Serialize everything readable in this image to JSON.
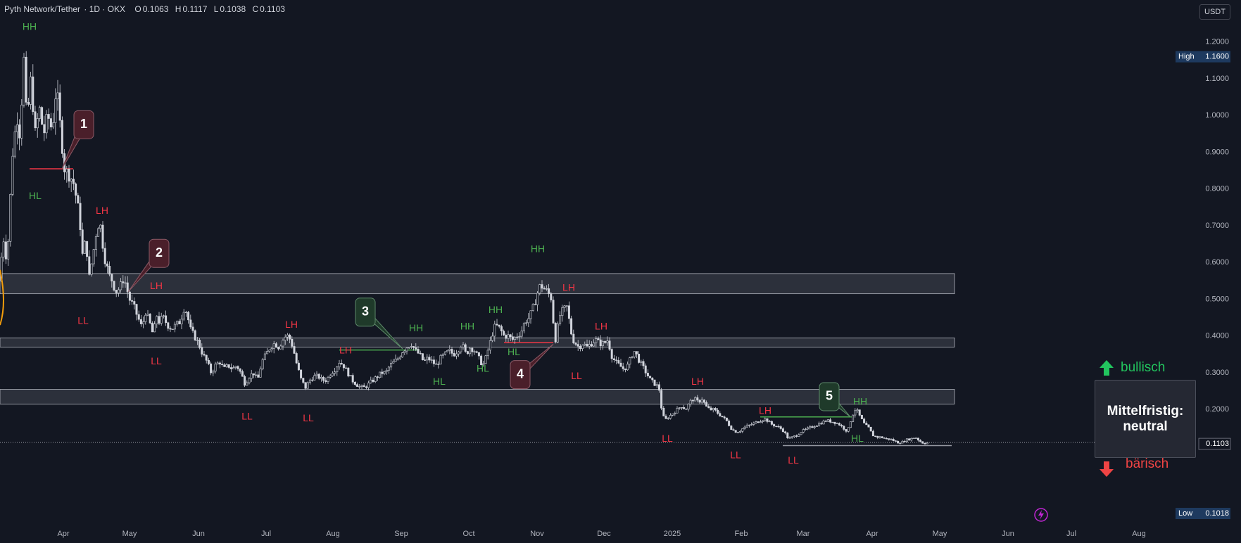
{
  "header": {
    "symbol": "Pyth Network/Tether",
    "interval_exchange": " · 1D · OKX",
    "ohlc": [
      {
        "key": "O",
        "value": "0.1063"
      },
      {
        "key": "H",
        "value": "0.1117"
      },
      {
        "key": "L",
        "value": "0.1038"
      },
      {
        "key": "C",
        "value": "0.1103"
      }
    ]
  },
  "currency_button": "USDT",
  "outlook": {
    "line1": "Mittelfristig:",
    "line2": "neutral",
    "bull": "bullisch",
    "bear": "bärisch"
  },
  "colors": {
    "background": "#131722",
    "candle": "#d1d4dc",
    "green": "#4caf50",
    "red": "#f23645",
    "zone": "rgba(120,123,134,0.25)"
  },
  "chart_data": {
    "type": "candlestick",
    "instrument": "Pyth Network/Tether",
    "price_axis": {
      "ticks": [
        "1.2000",
        "1.1000",
        "1.0000",
        "0.9000",
        "0.8000",
        "0.7000",
        "0.6000",
        "0.5000",
        "0.4000",
        "0.3000",
        "0.2000"
      ],
      "ylim": [
        0.08,
        1.25
      ],
      "high_label": "High",
      "high_value": "1.1600",
      "low_label": "Low",
      "low_value": "0.1018",
      "last_value": "0.1103"
    },
    "time_axis": {
      "ticks": [
        "Apr",
        "May",
        "Jun",
        "Jul",
        "Aug",
        "Sep",
        "Oct",
        "Nov",
        "Dec",
        "2025",
        "Feb",
        "Mar",
        "Apr",
        "May",
        "Jun",
        "Jul",
        "Aug"
      ]
    },
    "price_path": [
      [
        0,
        0.55
      ],
      [
        4,
        0.68
      ],
      [
        10,
        0.6
      ],
      [
        18,
        0.9
      ],
      [
        24,
        1.0
      ],
      [
        28,
        0.95
      ],
      [
        34,
        1.15
      ],
      [
        38,
        0.98
      ],
      [
        44,
        1.1
      ],
      [
        50,
        0.95
      ],
      [
        56,
        1.02
      ],
      [
        62,
        0.95
      ],
      [
        68,
        1.0
      ],
      [
        74,
        0.96
      ],
      [
        80,
        1.08
      ],
      [
        86,
        0.96
      ],
      [
        92,
        0.85
      ],
      [
        98,
        0.84
      ],
      [
        104,
        0.82
      ],
      [
        110,
        0.76
      ],
      [
        114,
        0.7
      ],
      [
        118,
        0.6
      ],
      [
        122,
        0.68
      ],
      [
        126,
        0.55
      ],
      [
        132,
        0.62
      ],
      [
        138,
        0.7
      ],
      [
        142,
        0.71
      ],
      [
        146,
        0.65
      ],
      [
        150,
        0.6
      ],
      [
        156,
        0.56
      ],
      [
        160,
        0.55
      ],
      [
        164,
        0.52
      ],
      [
        170,
        0.53
      ],
      [
        176,
        0.56
      ],
      [
        180,
        0.53
      ],
      [
        184,
        0.5
      ],
      [
        190,
        0.48
      ],
      [
        196,
        0.45
      ],
      [
        202,
        0.42
      ],
      [
        206,
        0.47
      ],
      [
        212,
        0.44
      ],
      [
        218,
        0.4
      ],
      [
        222,
        0.46
      ],
      [
        226,
        0.44
      ],
      [
        232,
        0.45
      ],
      [
        238,
        0.43
      ],
      [
        244,
        0.42
      ],
      [
        250,
        0.43
      ],
      [
        256,
        0.44
      ],
      [
        262,
        0.48
      ],
      [
        266,
        0.46
      ],
      [
        270,
        0.42
      ],
      [
        276,
        0.4
      ],
      [
        282,
        0.38
      ],
      [
        288,
        0.35
      ],
      [
        294,
        0.33
      ],
      [
        300,
        0.3
      ],
      [
        306,
        0.32
      ],
      [
        312,
        0.33
      ],
      [
        318,
        0.31
      ],
      [
        324,
        0.32
      ],
      [
        330,
        0.31
      ],
      [
        336,
        0.32
      ],
      [
        342,
        0.3
      ],
      [
        348,
        0.27
      ],
      [
        354,
        0.29
      ],
      [
        360,
        0.3
      ],
      [
        366,
        0.28
      ],
      [
        372,
        0.33
      ],
      [
        378,
        0.35
      ],
      [
        384,
        0.37
      ],
      [
        390,
        0.38
      ],
      [
        396,
        0.37
      ],
      [
        402,
        0.39
      ],
      [
        406,
        0.4
      ],
      [
        410,
        0.4
      ],
      [
        416,
        0.37
      ],
      [
        422,
        0.32
      ],
      [
        428,
        0.28
      ],
      [
        434,
        0.26
      ],
      [
        440,
        0.28
      ],
      [
        446,
        0.29
      ],
      [
        452,
        0.29
      ],
      [
        458,
        0.28
      ],
      [
        464,
        0.28
      ],
      [
        470,
        0.3
      ],
      [
        476,
        0.31
      ],
      [
        482,
        0.33
      ],
      [
        488,
        0.32
      ],
      [
        494,
        0.3
      ],
      [
        500,
        0.28
      ],
      [
        506,
        0.27
      ],
      [
        512,
        0.26
      ],
      [
        518,
        0.26
      ],
      [
        524,
        0.27
      ],
      [
        530,
        0.28
      ],
      [
        536,
        0.29
      ],
      [
        542,
        0.3
      ],
      [
        548,
        0.3
      ],
      [
        554,
        0.32
      ],
      [
        560,
        0.33
      ],
      [
        566,
        0.34
      ],
      [
        572,
        0.36
      ],
      [
        578,
        0.37
      ],
      [
        584,
        0.38
      ],
      [
        590,
        0.36
      ],
      [
        596,
        0.35
      ],
      [
        602,
        0.33
      ],
      [
        608,
        0.34
      ],
      [
        614,
        0.33
      ],
      [
        620,
        0.32
      ],
      [
        626,
        0.34
      ],
      [
        632,
        0.35
      ],
      [
        638,
        0.36
      ],
      [
        644,
        0.35
      ],
      [
        650,
        0.36
      ],
      [
        656,
        0.38
      ],
      [
        662,
        0.35
      ],
      [
        668,
        0.37
      ],
      [
        674,
        0.36
      ],
      [
        680,
        0.34
      ],
      [
        686,
        0.32
      ],
      [
        690,
        0.34
      ],
      [
        696,
        0.38
      ],
      [
        700,
        0.41
      ],
      [
        704,
        0.43
      ],
      [
        710,
        0.42
      ],
      [
        716,
        0.4
      ],
      [
        722,
        0.4
      ],
      [
        728,
        0.39
      ],
      [
        734,
        0.4
      ],
      [
        740,
        0.41
      ],
      [
        746,
        0.44
      ],
      [
        752,
        0.45
      ],
      [
        758,
        0.48
      ],
      [
        764,
        0.52
      ],
      [
        768,
        0.54
      ],
      [
        772,
        0.53
      ],
      [
        778,
        0.52
      ],
      [
        784,
        0.5
      ],
      [
        788,
        0.38
      ],
      [
        792,
        0.42
      ],
      [
        796,
        0.46
      ],
      [
        800,
        0.47
      ],
      [
        806,
        0.48
      ],
      [
        810,
        0.42
      ],
      [
        814,
        0.39
      ],
      [
        818,
        0.38
      ],
      [
        822,
        0.37
      ],
      [
        828,
        0.38
      ],
      [
        834,
        0.37
      ],
      [
        840,
        0.38
      ],
      [
        846,
        0.39
      ],
      [
        852,
        0.38
      ],
      [
        858,
        0.38
      ],
      [
        864,
        0.39
      ],
      [
        868,
        0.35
      ],
      [
        874,
        0.33
      ],
      [
        880,
        0.32
      ],
      [
        886,
        0.31
      ],
      [
        892,
        0.32
      ],
      [
        898,
        0.35
      ],
      [
        902,
        0.36
      ],
      [
        906,
        0.34
      ],
      [
        912,
        0.32
      ],
      [
        918,
        0.3
      ],
      [
        924,
        0.28
      ],
      [
        930,
        0.27
      ],
      [
        936,
        0.26
      ],
      [
        940,
        0.2
      ],
      [
        944,
        0.17
      ],
      [
        950,
        0.18
      ],
      [
        956,
        0.19
      ],
      [
        962,
        0.2
      ],
      [
        968,
        0.21
      ],
      [
        974,
        0.2
      ],
      [
        980,
        0.22
      ],
      [
        986,
        0.23
      ],
      [
        992,
        0.22
      ],
      [
        998,
        0.23
      ],
      [
        1002,
        0.21
      ],
      [
        1008,
        0.2
      ],
      [
        1014,
        0.2
      ],
      [
        1020,
        0.19
      ],
      [
        1026,
        0.18
      ],
      [
        1032,
        0.17
      ],
      [
        1038,
        0.15
      ],
      [
        1044,
        0.14
      ],
      [
        1050,
        0.14
      ],
      [
        1056,
        0.15
      ],
      [
        1062,
        0.155
      ],
      [
        1068,
        0.16
      ],
      [
        1074,
        0.165
      ],
      [
        1080,
        0.17
      ],
      [
        1086,
        0.175
      ],
      [
        1090,
        0.17
      ],
      [
        1096,
        0.16
      ],
      [
        1102,
        0.155
      ],
      [
        1108,
        0.15
      ],
      [
        1114,
        0.14
      ],
      [
        1120,
        0.12
      ],
      [
        1126,
        0.125
      ],
      [
        1132,
        0.13
      ],
      [
        1138,
        0.14
      ],
      [
        1144,
        0.145
      ],
      [
        1150,
        0.15
      ],
      [
        1156,
        0.155
      ],
      [
        1162,
        0.16
      ],
      [
        1168,
        0.165
      ],
      [
        1174,
        0.17
      ],
      [
        1180,
        0.168
      ],
      [
        1186,
        0.165
      ],
      [
        1192,
        0.16
      ],
      [
        1198,
        0.15
      ],
      [
        1204,
        0.14
      ],
      [
        1210,
        0.18
      ],
      [
        1214,
        0.2
      ],
      [
        1218,
        0.195
      ],
      [
        1222,
        0.18
      ],
      [
        1228,
        0.16
      ],
      [
        1234,
        0.15
      ],
      [
        1240,
        0.13
      ],
      [
        1246,
        0.125
      ],
      [
        1252,
        0.125
      ],
      [
        1258,
        0.12
      ],
      [
        1264,
        0.12
      ],
      [
        1270,
        0.115
      ],
      [
        1276,
        0.11
      ],
      [
        1282,
        0.112
      ],
      [
        1288,
        0.118
      ],
      [
        1294,
        0.12
      ],
      [
        1300,
        0.125
      ],
      [
        1306,
        0.115
      ],
      [
        1312,
        0.108
      ],
      [
        1318,
        0.11
      ]
    ],
    "zones": [
      {
        "low": 0.515,
        "high": 0.57
      },
      {
        "low": 0.37,
        "high": 0.395
      },
      {
        "low": 0.215,
        "high": 0.255
      }
    ],
    "labels": [
      {
        "text": "HH",
        "color": "green",
        "x": 42,
        "y": 1.24
      },
      {
        "text": "HL",
        "color": "green",
        "x": 50,
        "y": 0.78
      },
      {
        "text": "LH",
        "color": "red",
        "x": 145,
        "y": 0.74
      },
      {
        "text": "LL",
        "color": "red",
        "x": 118,
        "y": 0.44
      },
      {
        "text": "LH",
        "color": "red",
        "x": 222,
        "y": 0.535
      },
      {
        "text": "LL",
        "color": "red",
        "x": 222,
        "y": 0.33
      },
      {
        "text": "LL",
        "color": "red",
        "x": 351,
        "y": 0.18
      },
      {
        "text": "LH",
        "color": "red",
        "x": 414,
        "y": 0.43
      },
      {
        "text": "LL",
        "color": "red",
        "x": 438,
        "y": 0.175
      },
      {
        "text": "LH",
        "color": "red",
        "x": 491,
        "y": 0.36
      },
      {
        "text": "HH",
        "color": "green",
        "x": 591,
        "y": 0.42
      },
      {
        "text": "HL",
        "color": "green",
        "x": 624,
        "y": 0.275
      },
      {
        "text": "HH",
        "color": "green",
        "x": 664,
        "y": 0.425
      },
      {
        "text": "HH",
        "color": "green",
        "x": 704,
        "y": 0.47
      },
      {
        "text": "HL",
        "color": "green",
        "x": 686,
        "y": 0.31
      },
      {
        "text": "HL",
        "color": "green",
        "x": 730,
        "y": 0.355
      },
      {
        "text": "HH",
        "color": "green",
        "x": 764,
        "y": 0.635
      },
      {
        "text": "LH",
        "color": "red",
        "x": 808,
        "y": 0.53
      },
      {
        "text": "LL",
        "color": "red",
        "x": 819,
        "y": 0.29
      },
      {
        "text": "LH",
        "color": "red",
        "x": 854,
        "y": 0.425
      },
      {
        "text": "LL",
        "color": "red",
        "x": 948,
        "y": 0.12
      },
      {
        "text": "LH",
        "color": "red",
        "x": 991,
        "y": 0.275
      },
      {
        "text": "LL",
        "color": "red",
        "x": 1045,
        "y": 0.075
      },
      {
        "text": "LH",
        "color": "red",
        "x": 1087,
        "y": 0.195
      },
      {
        "text": "LL",
        "color": "red",
        "x": 1127,
        "y": 0.06
      },
      {
        "text": "HH",
        "color": "green",
        "x": 1222,
        "y": 0.22
      },
      {
        "text": "HL",
        "color": "green",
        "x": 1218,
        "y": 0.12
      }
    ],
    "callouts": [
      {
        "text": "1",
        "color": "red",
        "box_x": 119,
        "box_y": 0.975,
        "tip_x": 88,
        "tip_y": 0.855
      },
      {
        "text": "2",
        "color": "red",
        "box_x": 226,
        "box_y": 0.625,
        "tip_x": 182,
        "tip_y": 0.52
      },
      {
        "text": "3",
        "color": "green",
        "box_x": 519,
        "box_y": 0.465,
        "tip_x": 572,
        "tip_y": 0.365
      },
      {
        "text": "4",
        "color": "red",
        "box_x": 739,
        "box_y": 0.295,
        "tip_x": 786,
        "tip_y": 0.378
      },
      {
        "text": "5",
        "color": "green",
        "box_x": 1178,
        "box_y": 0.235,
        "tip_x": 1208,
        "tip_y": 0.18
      }
    ],
    "trend_lines": [
      {
        "color": "red",
        "x1": 42,
        "x2": 104,
        "y": 0.855
      },
      {
        "color": "green",
        "x1": 482,
        "x2": 596,
        "y": 0.362
      },
      {
        "color": "red",
        "x1": 716,
        "x2": 786,
        "y": 0.382
      },
      {
        "color": "green",
        "x1": 1080,
        "x2": 1210,
        "y": 0.18
      },
      {
        "color": "grey",
        "x1": 1112,
        "x2": 1352,
        "y": 0.102
      }
    ]
  }
}
